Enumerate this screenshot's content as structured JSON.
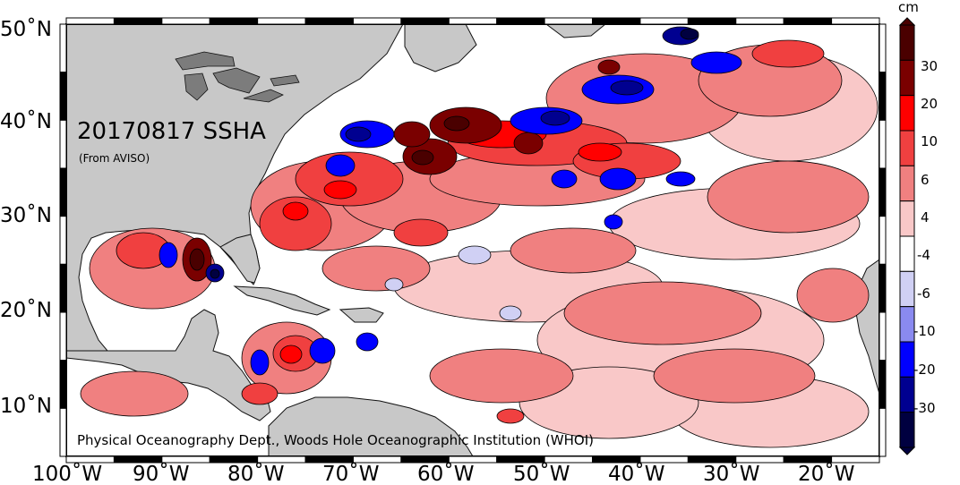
{
  "map": {
    "title": "20170817 SSHA",
    "source_note": "(From AVISO)",
    "credit": "Physical Oceanography Dept., Woods Hole Oceanographic Institution (WHOI)",
    "lat_labels": [
      "50˚N",
      "40˚N",
      "30˚N",
      "20˚N",
      "10˚N"
    ],
    "lon_labels": [
      "100˚W",
      "90˚W",
      "80˚W",
      "70˚W",
      "60˚W",
      "50˚W",
      "40˚W",
      "30˚W",
      "20˚W"
    ],
    "land_color": "#c8c8c8",
    "ocean_color": "#ffffff"
  },
  "colorbar": {
    "unit": "cm",
    "labels": [
      "30",
      "20",
      "10",
      "6",
      "4",
      "-4",
      "-6",
      "-10",
      "-20",
      "-30"
    ],
    "colors": [
      "#4a0000",
      "#7a0000",
      "#ff0000",
      "#f04040",
      "#f08080",
      "#f9c8c8",
      "#ffffff",
      "#d0d0f4",
      "#8a8af0",
      "#0000ff",
      "#000090",
      "#000040"
    ]
  }
}
